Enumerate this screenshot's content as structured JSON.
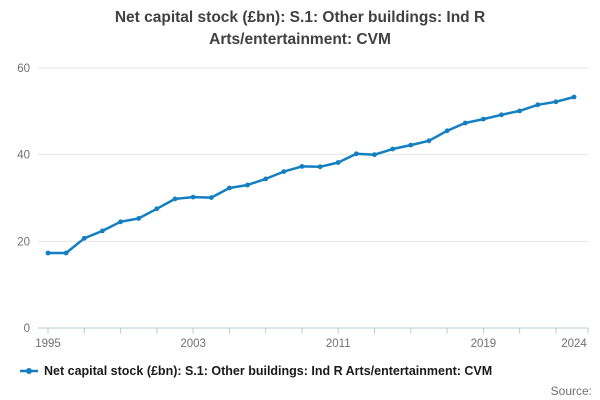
{
  "title": {
    "full": "Net capital stock (£bn): S.1: Other buildings: Ind R Arts/entertainment: CVM",
    "line1": "Net capital stock (£bn): S.1: Other buildings: Ind R",
    "line2": "Arts/entertainment: CVM"
  },
  "legend": {
    "label": "Net capital stock (£bn): S.1: Other buildings: Ind R Arts/entertainment: CVM"
  },
  "source_label": "Source:",
  "colors": {
    "line": "#137fc0",
    "grid": "#e6e6e6",
    "axis": "#b9c9da",
    "tick_label": "#707070",
    "title_text": "#414042",
    "legend_text": "#1a1a1a"
  },
  "chart_data": {
    "type": "line",
    "title": "Net capital stock (£bn): S.1: Other buildings: Ind R Arts/entertainment: CVM",
    "xlabel": "",
    "ylabel": "",
    "x": [
      1995,
      1996,
      1997,
      1998,
      1999,
      2000,
      2001,
      2002,
      2003,
      2004,
      2005,
      2006,
      2007,
      2008,
      2009,
      2010,
      2011,
      2012,
      2013,
      2014,
      2015,
      2016,
      2017,
      2018,
      2019,
      2020,
      2021,
      2022,
      2023,
      2024
    ],
    "series": [
      {
        "name": "Net capital stock (£bn): S.1: Other buildings: Ind R Arts/entertainment: CVM",
        "values": [
          17.3,
          17.3,
          20.7,
          22.4,
          24.5,
          25.3,
          27.5,
          29.8,
          30.2,
          30.1,
          32.3,
          33.0,
          34.4,
          36.1,
          37.3,
          37.2,
          38.2,
          40.2,
          40.0,
          41.3,
          42.2,
          43.2,
          45.5,
          47.3,
          48.2,
          49.2,
          50.1,
          51.5,
          52.2,
          53.3
        ]
      }
    ],
    "ylim": [
      0,
      65
    ],
    "yticks": [
      0,
      20,
      40,
      60
    ],
    "xtick_labels": [
      1995,
      2003,
      2011,
      2019,
      2024
    ],
    "minor_xtick_step_years": 2,
    "grid": true,
    "marker": "circle",
    "legend_position": "bottom"
  }
}
